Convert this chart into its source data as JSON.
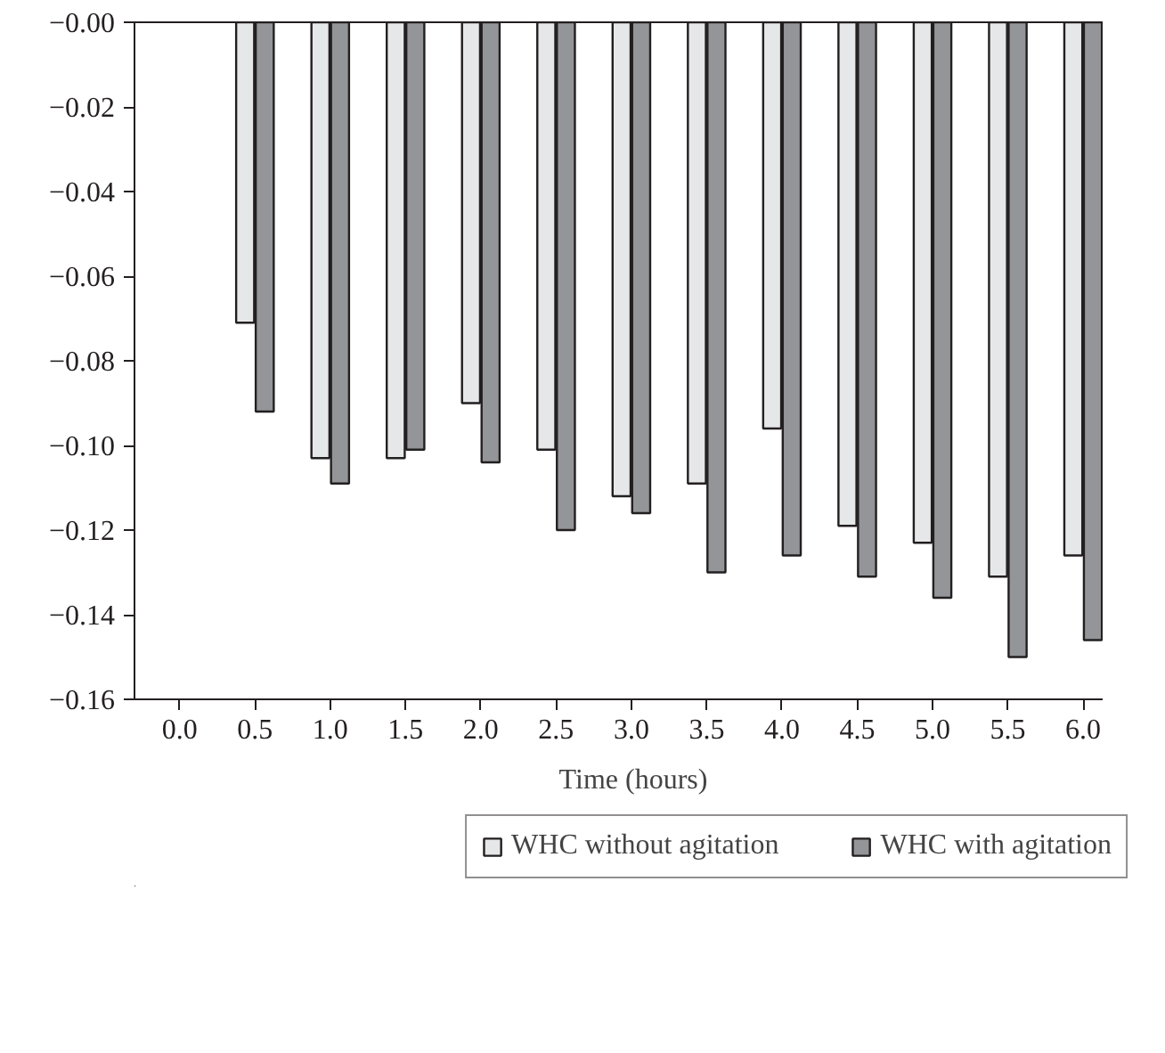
{
  "chart_data": {
    "type": "bar",
    "xlabel": "Time (hours)",
    "categories": [
      "0.0",
      "0.5",
      "1.0",
      "1.5",
      "2.0",
      "2.5",
      "3.0",
      "3.5",
      "4.0",
      "4.5",
      "5.0",
      "5.5",
      "6.0"
    ],
    "series": [
      {
        "name": "WHC without agitation",
        "color": "#e6e7e8",
        "values": [
          null,
          -0.071,
          -0.103,
          -0.103,
          -0.09,
          -0.101,
          -0.112,
          -0.109,
          -0.096,
          -0.119,
          -0.123,
          -0.131,
          -0.126
        ]
      },
      {
        "name": "WHC with agitation",
        "color": "#939598",
        "values": [
          null,
          -0.092,
          -0.109,
          -0.101,
          -0.104,
          -0.12,
          -0.116,
          -0.13,
          -0.126,
          -0.131,
          -0.136,
          -0.15,
          -0.146
        ]
      }
    ],
    "ylim": [
      -0.16,
      0
    ],
    "yticks": [
      {
        "value": 0,
        "label": "−0.00"
      },
      {
        "value": -0.02,
        "label": "−0.02"
      },
      {
        "value": -0.04,
        "label": "−0.04"
      },
      {
        "value": -0.06,
        "label": "−0.06"
      },
      {
        "value": -0.08,
        "label": "−0.08"
      },
      {
        "value": -0.1,
        "label": "−0.10"
      },
      {
        "value": -0.12,
        "label": "−0.12"
      },
      {
        "value": -0.14,
        "label": "−0.14"
      },
      {
        "value": -0.16,
        "label": "−0.16"
      }
    ],
    "grid": false,
    "legend": "bottom"
  }
}
